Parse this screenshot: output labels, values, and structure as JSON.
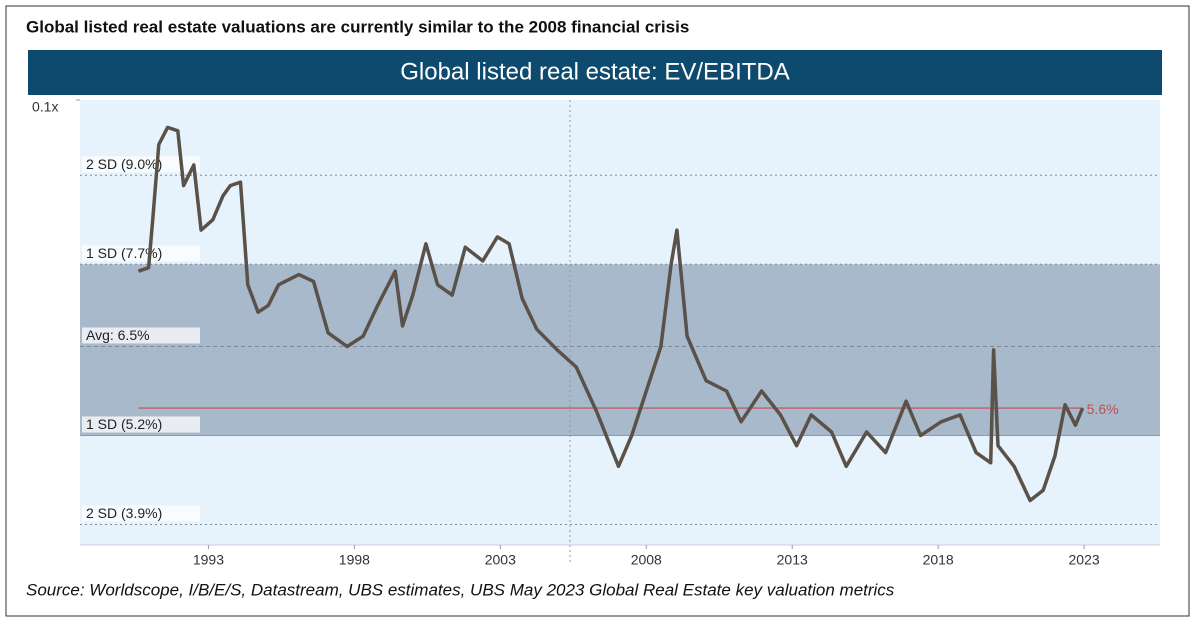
{
  "chart_data": {
    "type": "line",
    "headline": "Global listed real estate valuations are currently similar to the 2008 financial crisis",
    "title": "Global listed real estate: EV/EBITDA",
    "source": "Source: Worldscope, I/B/E/S, Datastream, UBS estimates, UBS May 2023 Global Real Estate key valuation metrics",
    "xlim": [
      1988.6,
      2025.6
    ],
    "xticks": [
      1993,
      1998,
      2003,
      2008,
      2013,
      2018,
      2023
    ],
    "ylim": [
      3.6,
      10.1
    ],
    "yticks": [
      {
        "value": 10.1,
        "label": "0.1x"
      }
    ],
    "band": [
      5.2,
      7.7
    ],
    "reference_lines": [
      {
        "label": "2 SD (9.0%)",
        "value": 9.0,
        "style": "dotted"
      },
      {
        "label": "1 SD (7.7%)",
        "value": 7.7,
        "style": "dotted"
      },
      {
        "label": "Avg: 6.5%",
        "value": 6.5,
        "style": "dashed"
      },
      {
        "label": "1 SD (5.2%)",
        "value": 5.2,
        "style": "solid"
      },
      {
        "label": "2 SD (3.9%)",
        "value": 3.9,
        "style": "dotted"
      }
    ],
    "current": {
      "label": "5.6%",
      "value": 5.6,
      "color": "#c0504d"
    },
    "series": [
      {
        "name": "EV/EBITDA",
        "color": "#5a5149",
        "x": [
          1990.6,
          1990.95,
          1991.1,
          1991.3,
          1991.6,
          1991.95,
          1992.15,
          1992.5,
          1992.75,
          1993.15,
          1993.5,
          1993.75,
          1994.1,
          1994.35,
          1994.7,
          1995.05,
          1995.4,
          1996.1,
          1996.6,
          1997.1,
          1997.75,
          1998.3,
          1998.8,
          1999.4,
          1999.65,
          2000.0,
          2000.45,
          2000.85,
          2001.35,
          2001.8,
          2002.4,
          2002.9,
          2003.3,
          2003.75,
          2004.25,
          2004.95,
          2005.6,
          2006.3,
          2007.05,
          2007.5,
          2008.0,
          2008.5,
          2008.85,
          2009.05,
          2009.4,
          2010.05,
          2010.75,
          2011.25,
          2011.95,
          2012.6,
          2013.15,
          2013.65,
          2014.35,
          2014.85,
          2015.55,
          2016.2,
          2016.9,
          2017.4,
          2018.1,
          2018.75,
          2019.3,
          2019.8,
          2019.9,
          2020.05,
          2020.6,
          2021.15,
          2021.6,
          2022.0,
          2022.35,
          2022.7,
          2022.95
        ],
        "values": [
          7.6,
          7.65,
          8.4,
          9.45,
          9.7,
          9.65,
          8.85,
          9.15,
          8.2,
          8.35,
          8.7,
          8.85,
          8.9,
          7.4,
          7.0,
          7.1,
          7.4,
          7.55,
          7.45,
          6.7,
          6.5,
          6.65,
          7.1,
          7.6,
          6.8,
          7.25,
          8.0,
          7.4,
          7.25,
          7.95,
          7.75,
          8.1,
          8.0,
          7.2,
          6.75,
          6.45,
          6.2,
          5.55,
          4.75,
          5.2,
          5.85,
          6.5,
          7.7,
          8.2,
          6.65,
          6.0,
          5.85,
          5.4,
          5.85,
          5.5,
          5.05,
          5.5,
          5.25,
          4.75,
          5.25,
          4.95,
          5.7,
          5.2,
          5.4,
          5.5,
          4.95,
          4.8,
          6.45,
          5.05,
          4.75,
          4.25,
          4.4,
          4.9,
          5.65,
          5.35,
          5.6
        ]
      }
    ]
  }
}
